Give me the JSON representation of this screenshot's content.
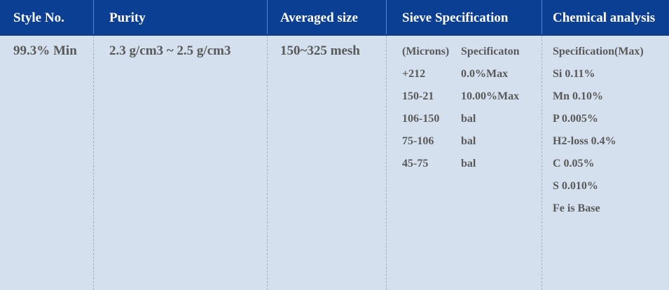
{
  "headers": [
    "Style No.",
    "Purity",
    "Averaged size",
    "Sieve Specification",
    "Chemical analysis"
  ],
  "row": {
    "style_no": "99.3% Min",
    "purity": "2.3 g/cm3 ~ 2.5 g/cm3",
    "averaged_size": "150~325 mesh",
    "sieve": [
      [
        "(Microns)",
        "Specificaton"
      ],
      [
        "+212",
        "0.0%Max"
      ],
      [
        "150-21",
        "10.00%Max"
      ],
      [
        "106-150",
        "bal"
      ],
      [
        "75-106",
        "bal"
      ],
      [
        "45-75",
        "bal"
      ]
    ],
    "chemical": [
      "Specification(Max)",
      "Si   0.11%",
      "Mn  0.10%",
      "P 0.005%",
      "H2-loss 0.4%",
      "C 0.05%",
      "S  0.010%",
      "Fe is Base"
    ]
  },
  "colors": {
    "header_bg": "#0a3f93",
    "body_bg": "#d4e0ee",
    "header_text": "#ffffff",
    "body_text": "#595959"
  }
}
